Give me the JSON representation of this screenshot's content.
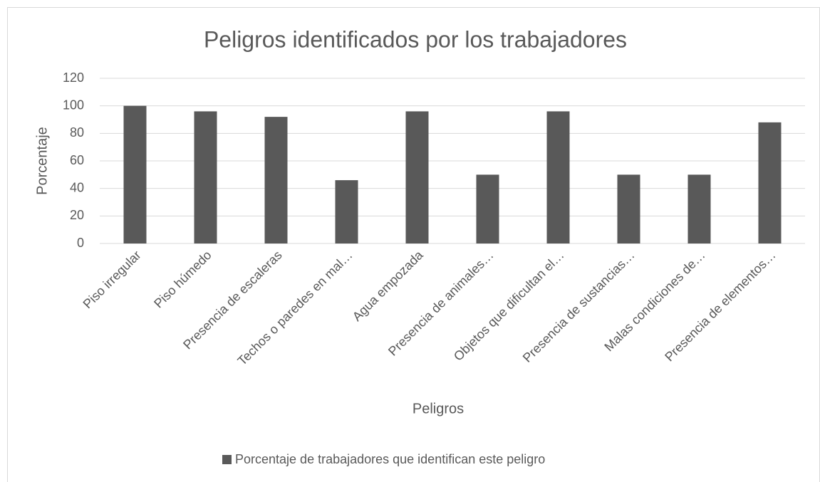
{
  "chart_data": {
    "type": "bar",
    "title": "Peligros identificados por los trabajadores",
    "x_label": "Peligros",
    "y_label": "Porcentaje",
    "categories": [
      "Piso irregular",
      "Piso húmedo",
      "Presencia de escaleras",
      "Techos o paredes en mal…",
      "Agua empozada",
      "Presencia de animales…",
      "Objetos que dificultan el…",
      "Presencia de sustancias…",
      "Malas condiciones de…",
      "Presencia de elementos…"
    ],
    "series": [
      {
        "name": "Porcentaje de trabajadores que identifican este peligro",
        "color": "#595959",
        "values": [
          100,
          96,
          92,
          46,
          96,
          50,
          96,
          50,
          50,
          88
        ]
      }
    ],
    "ylim": [
      0,
      120
    ],
    "yticks": [
      0,
      20,
      40,
      60,
      80,
      100,
      120
    ],
    "grid": true,
    "legend": "bottom"
  }
}
